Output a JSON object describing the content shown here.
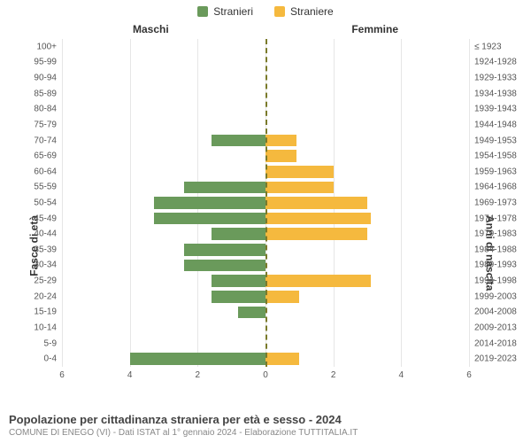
{
  "legend": {
    "male": {
      "label": "Stranieri",
      "color": "#6a9a5b"
    },
    "female": {
      "label": "Straniere",
      "color": "#f5b93e"
    }
  },
  "column_headers": {
    "left": "Maschi",
    "right": "Femmine"
  },
  "axis_titles": {
    "left": "Fasce di età",
    "right": "Anni di nascita"
  },
  "chart": {
    "type": "population-pyramid",
    "x_max": 6,
    "x_ticks": [
      6,
      4,
      2,
      0,
      2,
      4,
      6
    ],
    "grid_color": "#e6e6e6",
    "center_line_color": "#7a7a2a",
    "background_color": "#ffffff",
    "bar_male_color": "#6a9a5b",
    "bar_female_color": "#f5b93e",
    "label_fontsize": 10,
    "rows": [
      {
        "age": "100+",
        "birth": "≤ 1923",
        "male": 0,
        "female": 0
      },
      {
        "age": "95-99",
        "birth": "1924-1928",
        "male": 0,
        "female": 0
      },
      {
        "age": "90-94",
        "birth": "1929-1933",
        "male": 0,
        "female": 0
      },
      {
        "age": "85-89",
        "birth": "1934-1938",
        "male": 0,
        "female": 0
      },
      {
        "age": "80-84",
        "birth": "1939-1943",
        "male": 0,
        "female": 0
      },
      {
        "age": "75-79",
        "birth": "1944-1948",
        "male": 0,
        "female": 0
      },
      {
        "age": "70-74",
        "birth": "1949-1953",
        "male": 1.6,
        "female": 0.9
      },
      {
        "age": "65-69",
        "birth": "1954-1958",
        "male": 0,
        "female": 0.9
      },
      {
        "age": "60-64",
        "birth": "1959-1963",
        "male": 0,
        "female": 2.0
      },
      {
        "age": "55-59",
        "birth": "1964-1968",
        "male": 2.4,
        "female": 2.0
      },
      {
        "age": "50-54",
        "birth": "1969-1973",
        "male": 3.3,
        "female": 3.0
      },
      {
        "age": "45-49",
        "birth": "1974-1978",
        "male": 3.3,
        "female": 3.1
      },
      {
        "age": "40-44",
        "birth": "1979-1983",
        "male": 1.6,
        "female": 3.0
      },
      {
        "age": "35-39",
        "birth": "1984-1988",
        "male": 2.4,
        "female": 0
      },
      {
        "age": "30-34",
        "birth": "1989-1993",
        "male": 2.4,
        "female": 0
      },
      {
        "age": "25-29",
        "birth": "1994-1998",
        "male": 1.6,
        "female": 3.1
      },
      {
        "age": "20-24",
        "birth": "1999-2003",
        "male": 1.6,
        "female": 1.0
      },
      {
        "age": "15-19",
        "birth": "2004-2008",
        "male": 0.8,
        "female": 0
      },
      {
        "age": "10-14",
        "birth": "2009-2013",
        "male": 0,
        "female": 0
      },
      {
        "age": "5-9",
        "birth": "2014-2018",
        "male": 0,
        "female": 0
      },
      {
        "age": "0-4",
        "birth": "2019-2023",
        "male": 4.0,
        "female": 1.0
      }
    ]
  },
  "footer": {
    "title": "Popolazione per cittadinanza straniera per età e sesso - 2024",
    "subtitle": "COMUNE DI ENEGO (VI) - Dati ISTAT al 1° gennaio 2024 - Elaborazione TUTTITALIA.IT"
  }
}
